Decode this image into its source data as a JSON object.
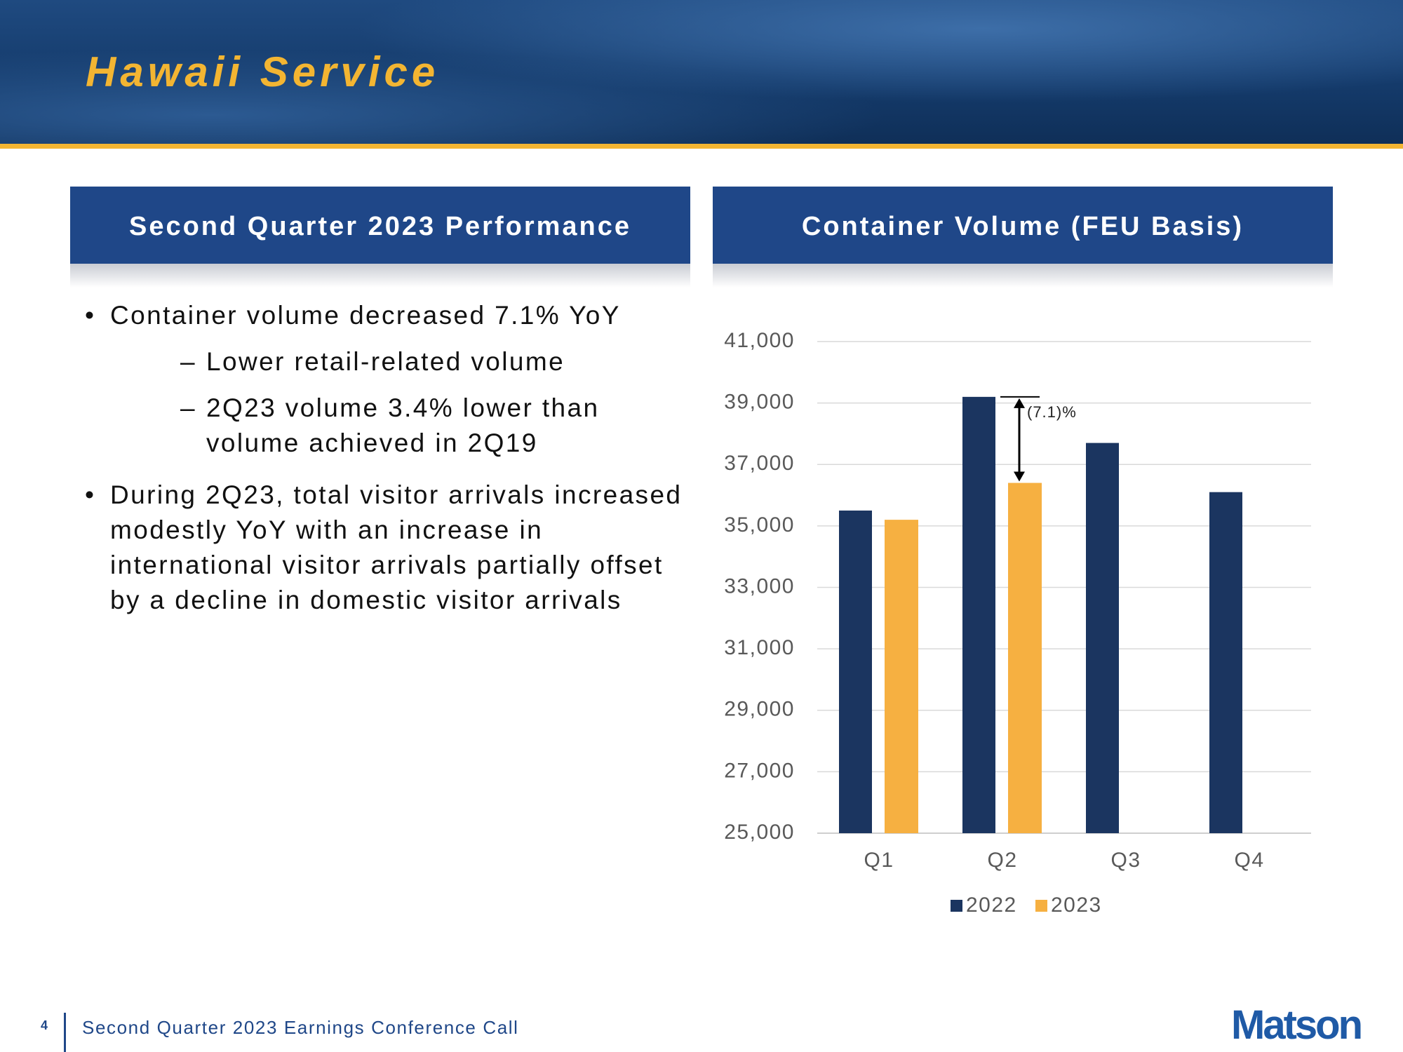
{
  "header": {
    "title": "Hawaii Service"
  },
  "left_panel": {
    "title": "Second Quarter 2023 Performance",
    "bullets": [
      {
        "text": "Container volume decreased 7.1% YoY",
        "sub": [
          "Lower retail-related volume",
          "2Q23 volume 3.4% lower than volume achieved in 2Q19"
        ]
      },
      {
        "text": "During 2Q23, total visitor arrivals increased modestly YoY with an increase in international visitor arrivals partially offset by a decline in domestic visitor arrivals"
      }
    ]
  },
  "chart_panel": {
    "title": "Container Volume (FEU Basis)"
  },
  "chart_data": {
    "type": "bar",
    "categories": [
      "Q1",
      "Q2",
      "Q3",
      "Q4"
    ],
    "series": [
      {
        "name": "2022",
        "color": "#1b3560",
        "values": [
          35500,
          39200,
          37700,
          36100
        ]
      },
      {
        "name": "2023",
        "color": "#f6b041",
        "values": [
          35200,
          36400,
          null,
          null
        ]
      }
    ],
    "ylim": [
      25000,
      41000
    ],
    "yticks": [
      {
        "value": 25000,
        "label": "25,000"
      },
      {
        "value": 27000,
        "label": "27,000"
      },
      {
        "value": 29000,
        "label": "29,000"
      },
      {
        "value": 31000,
        "label": "31,000"
      },
      {
        "value": 33000,
        "label": "33,000"
      },
      {
        "value": 35000,
        "label": "35,000"
      },
      {
        "value": 37000,
        "label": "37,000"
      },
      {
        "value": 39000,
        "label": "39,000"
      },
      {
        "value": 41000,
        "label": "41,000"
      }
    ],
    "grid": true,
    "legend": "bottom",
    "annotation": "(7.1)%"
  },
  "footer": {
    "page": "4",
    "text": "Second Quarter 2023 Earnings Conference Call",
    "logo": "Matson"
  }
}
